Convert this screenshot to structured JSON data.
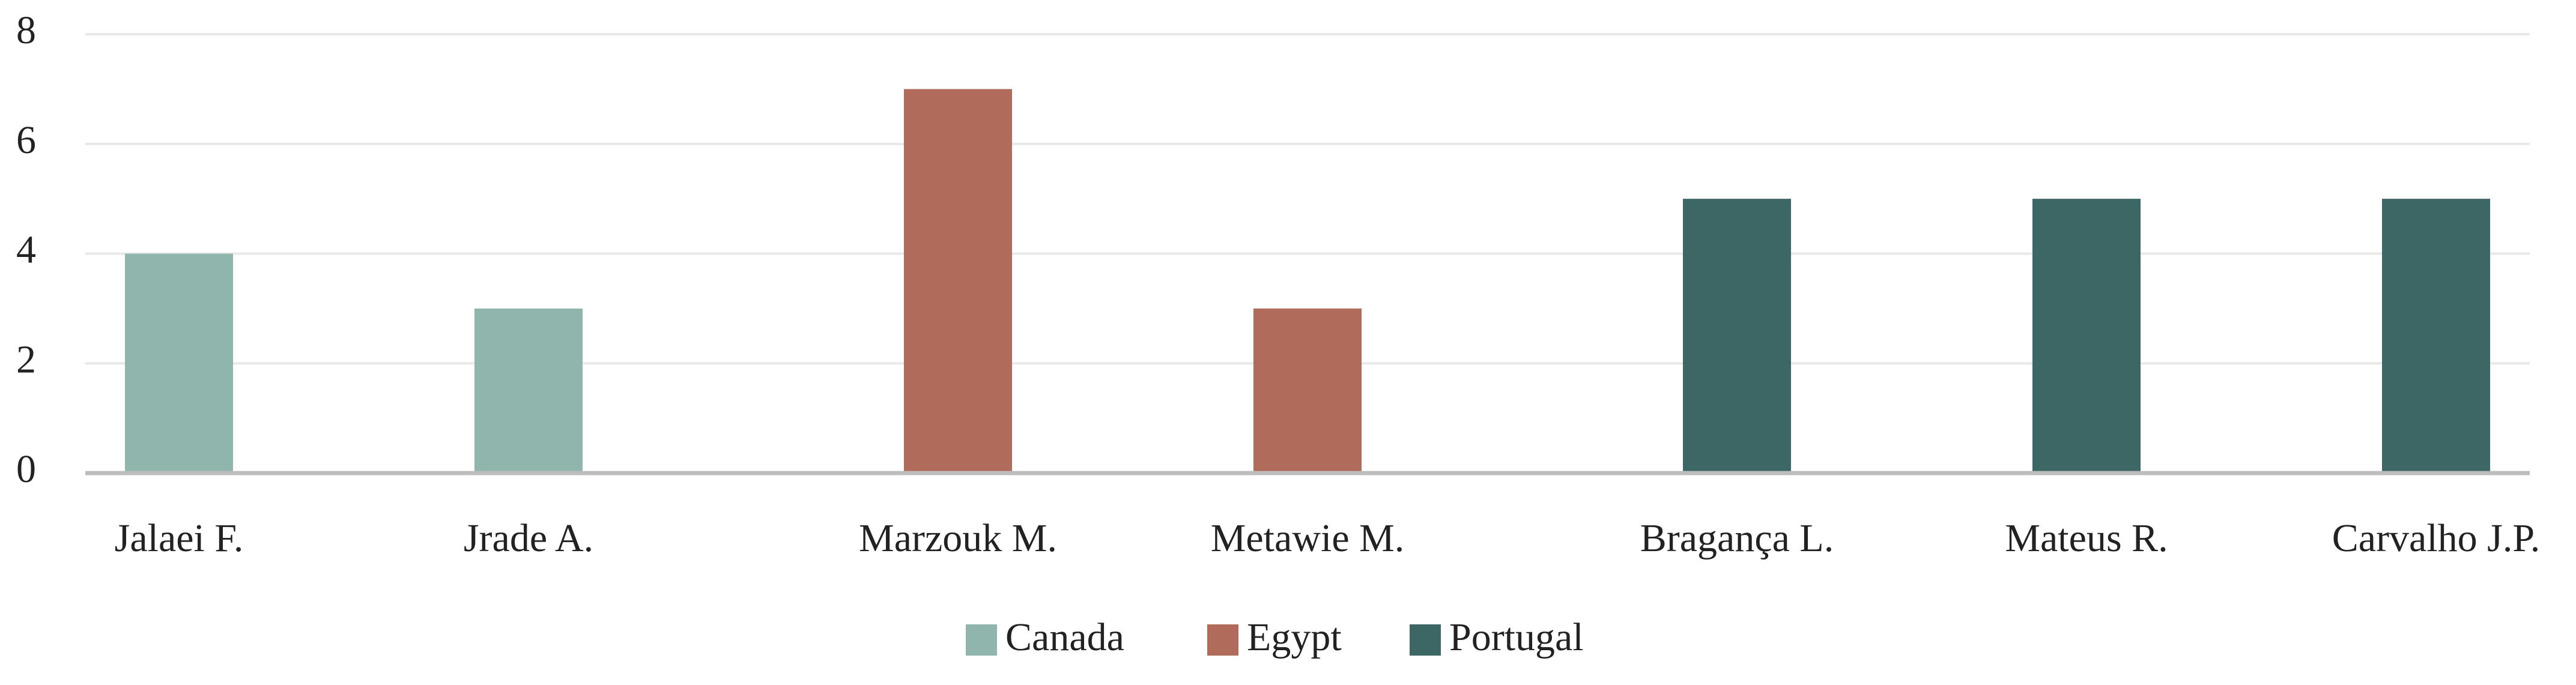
{
  "chart_data": {
    "type": "bar",
    "categories": [
      "Jalaei  F.",
      "Jrade  A.",
      "Marzouk  M.",
      "Metawie  M.",
      "Bragança  L.",
      "Mateus  R.",
      "Carvalho  J.P."
    ],
    "series": [
      {
        "name": "Canada",
        "color": "#8fb5ad",
        "values": [
          4,
          3,
          null,
          null,
          null,
          null,
          null
        ]
      },
      {
        "name": "Egypt",
        "color": "#b06b5b",
        "values": [
          null,
          null,
          7,
          3,
          null,
          null,
          null
        ]
      },
      {
        "name": "Portugal",
        "color": "#3c6764",
        "values": [
          null,
          null,
          null,
          null,
          5,
          5,
          5
        ]
      }
    ],
    "ylim": [
      0,
      8
    ],
    "yticks": [
      0,
      2,
      4,
      6,
      8
    ],
    "grid": true,
    "legend": "bottom"
  }
}
